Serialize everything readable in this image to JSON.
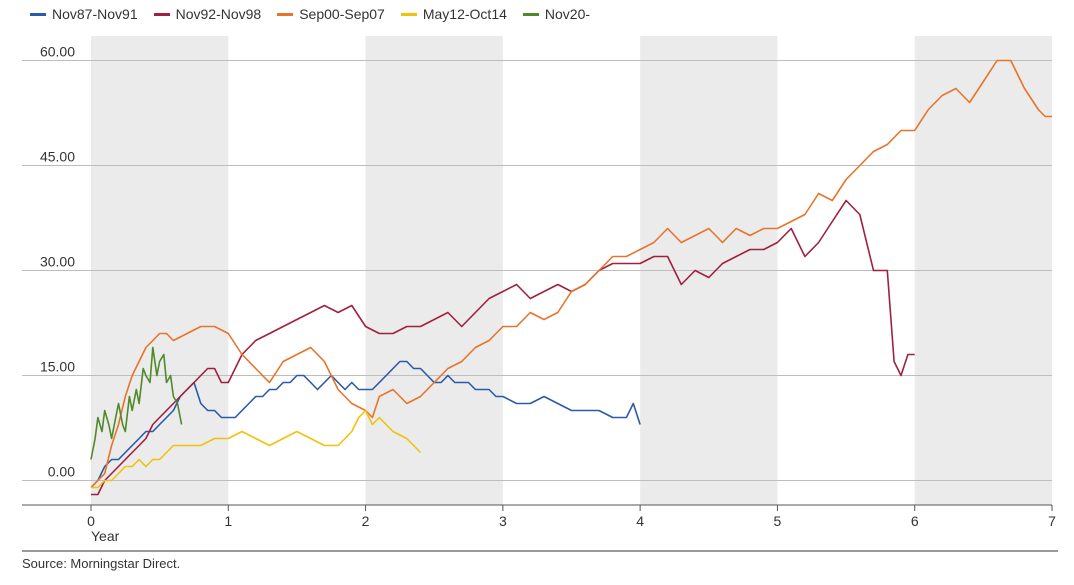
{
  "chart_data": {
    "type": "line",
    "xlabel": "Year",
    "xlim": [
      0,
      7
    ],
    "ylim": [
      -3.5,
      63.5
    ],
    "xticks": [
      0,
      1,
      2,
      3,
      4,
      5,
      6,
      7
    ],
    "yticks": [
      "0.00",
      "15.00",
      "30.00",
      "45.00",
      "60.00"
    ],
    "grid": true,
    "legend_placement": "top-left",
    "source": "Source: Morningstar Direct.",
    "series": [
      {
        "name": "Nov87-Nov91",
        "color": "#2b5aa8",
        "x": [
          0.0,
          0.05,
          0.1,
          0.15,
          0.2,
          0.25,
          0.3,
          0.35,
          0.4,
          0.45,
          0.5,
          0.55,
          0.6,
          0.65,
          0.7,
          0.75,
          0.8,
          0.85,
          0.9,
          0.95,
          1.0,
          1.05,
          1.1,
          1.15,
          1.2,
          1.25,
          1.3,
          1.35,
          1.4,
          1.45,
          1.5,
          1.55,
          1.6,
          1.65,
          1.7,
          1.75,
          1.8,
          1.85,
          1.9,
          1.95,
          2.0,
          2.05,
          2.1,
          2.15,
          2.2,
          2.25,
          2.3,
          2.35,
          2.4,
          2.45,
          2.5,
          2.55,
          2.6,
          2.65,
          2.7,
          2.75,
          2.8,
          2.85,
          2.9,
          2.95,
          3.0,
          3.1,
          3.2,
          3.3,
          3.4,
          3.5,
          3.6,
          3.7,
          3.8,
          3.9,
          3.95,
          4.0
        ],
        "y": [
          -1,
          0,
          2,
          3,
          3,
          4,
          5,
          6,
          7,
          7,
          8,
          9,
          10,
          12,
          13,
          14,
          11,
          10,
          10,
          9,
          9,
          9,
          10,
          11,
          12,
          12,
          13,
          13,
          14,
          14,
          15,
          15,
          14,
          13,
          14,
          15,
          14,
          13,
          14,
          13,
          13,
          13,
          14,
          15,
          16,
          17,
          17,
          16,
          16,
          15,
          14,
          14,
          15,
          14,
          14,
          14,
          13,
          13,
          13,
          12,
          12,
          11,
          11,
          12,
          11,
          10,
          10,
          10,
          9,
          9,
          11,
          8
        ]
      },
      {
        "name": "Nov92-Nov98",
        "color": "#a0213f",
        "x": [
          0.0,
          0.05,
          0.1,
          0.15,
          0.2,
          0.25,
          0.3,
          0.35,
          0.4,
          0.45,
          0.5,
          0.55,
          0.6,
          0.65,
          0.7,
          0.75,
          0.8,
          0.85,
          0.9,
          0.95,
          1.0,
          1.1,
          1.2,
          1.3,
          1.4,
          1.5,
          1.6,
          1.7,
          1.8,
          1.9,
          2.0,
          2.1,
          2.2,
          2.3,
          2.4,
          2.5,
          2.6,
          2.7,
          2.8,
          2.9,
          3.0,
          3.1,
          3.2,
          3.3,
          3.4,
          3.5,
          3.6,
          3.7,
          3.8,
          3.9,
          4.0,
          4.1,
          4.2,
          4.3,
          4.4,
          4.5,
          4.6,
          4.7,
          4.8,
          4.9,
          5.0,
          5.1,
          5.2,
          5.3,
          5.4,
          5.5,
          5.6,
          5.7,
          5.8,
          5.85,
          5.9,
          5.95,
          6.0
        ],
        "y": [
          -2,
          -2,
          0,
          1,
          2,
          3,
          4,
          5,
          6,
          8,
          9,
          10,
          11,
          12,
          13,
          14,
          15,
          16,
          16,
          14,
          14,
          18,
          20,
          21,
          22,
          23,
          24,
          25,
          24,
          25,
          22,
          21,
          21,
          22,
          22,
          23,
          24,
          22,
          24,
          26,
          27,
          28,
          26,
          27,
          28,
          27,
          28,
          30,
          31,
          31,
          31,
          32,
          32,
          28,
          30,
          29,
          31,
          32,
          33,
          33,
          34,
          36,
          32,
          34,
          37,
          40,
          38,
          30,
          30,
          17,
          15,
          18,
          18
        ]
      },
      {
        "name": "Sep00-Sep07",
        "color": "#e8742a",
        "x": [
          0.0,
          0.05,
          0.1,
          0.15,
          0.2,
          0.25,
          0.3,
          0.35,
          0.4,
          0.45,
          0.5,
          0.55,
          0.6,
          0.7,
          0.8,
          0.9,
          1.0,
          1.1,
          1.2,
          1.3,
          1.4,
          1.5,
          1.6,
          1.7,
          1.8,
          1.9,
          2.0,
          2.05,
          2.1,
          2.2,
          2.3,
          2.4,
          2.5,
          2.6,
          2.7,
          2.8,
          2.9,
          3.0,
          3.1,
          3.2,
          3.3,
          3.4,
          3.5,
          3.6,
          3.7,
          3.8,
          3.9,
          4.0,
          4.1,
          4.2,
          4.3,
          4.4,
          4.5,
          4.6,
          4.7,
          4.8,
          4.9,
          5.0,
          5.1,
          5.2,
          5.3,
          5.4,
          5.5,
          5.6,
          5.7,
          5.8,
          5.9,
          6.0,
          6.1,
          6.2,
          6.3,
          6.4,
          6.5,
          6.6,
          6.7,
          6.8,
          6.9,
          6.95,
          7.0
        ],
        "y": [
          -1,
          0,
          1,
          5,
          8,
          12,
          15,
          17,
          19,
          20,
          21,
          21,
          20,
          21,
          22,
          22,
          21,
          18,
          16,
          14,
          17,
          18,
          19,
          17,
          13,
          11,
          10,
          9,
          12,
          13,
          11,
          12,
          14,
          16,
          17,
          19,
          20,
          22,
          22,
          24,
          23,
          24,
          27,
          28,
          30,
          32,
          32,
          33,
          34,
          36,
          34,
          35,
          36,
          34,
          36,
          35,
          36,
          36,
          37,
          38,
          41,
          40,
          43,
          45,
          47,
          48,
          50,
          50,
          53,
          55,
          56,
          54,
          57,
          60,
          60,
          56,
          53,
          52,
          52
        ]
      },
      {
        "name": "May12-Oct14",
        "color": "#f0c20a",
        "x": [
          0.0,
          0.05,
          0.1,
          0.15,
          0.2,
          0.25,
          0.3,
          0.35,
          0.4,
          0.45,
          0.5,
          0.6,
          0.7,
          0.8,
          0.9,
          1.0,
          1.1,
          1.2,
          1.3,
          1.4,
          1.5,
          1.6,
          1.7,
          1.8,
          1.85,
          1.9,
          1.95,
          2.0,
          2.05,
          2.1,
          2.2,
          2.3,
          2.4
        ],
        "y": [
          -1,
          -1,
          0,
          0,
          1,
          2,
          2,
          3,
          2,
          3,
          3,
          5,
          5,
          5,
          6,
          6,
          7,
          6,
          5,
          6,
          7,
          6,
          5,
          5,
          6,
          7,
          9,
          10,
          8,
          9,
          7,
          6,
          4
        ]
      },
      {
        "name": "Nov20-",
        "color": "#4f8a2a",
        "x": [
          0.0,
          0.03,
          0.05,
          0.08,
          0.1,
          0.13,
          0.15,
          0.18,
          0.2,
          0.23,
          0.25,
          0.28,
          0.3,
          0.33,
          0.35,
          0.38,
          0.4,
          0.43,
          0.45,
          0.48,
          0.5,
          0.53,
          0.55,
          0.58,
          0.6,
          0.63,
          0.66
        ],
        "y": [
          3,
          6,
          9,
          7,
          10,
          8,
          6,
          9,
          11,
          8,
          7,
          12,
          10,
          13,
          11,
          16,
          15,
          14,
          19,
          15,
          17,
          18,
          14,
          15,
          12,
          11,
          8
        ]
      }
    ]
  }
}
